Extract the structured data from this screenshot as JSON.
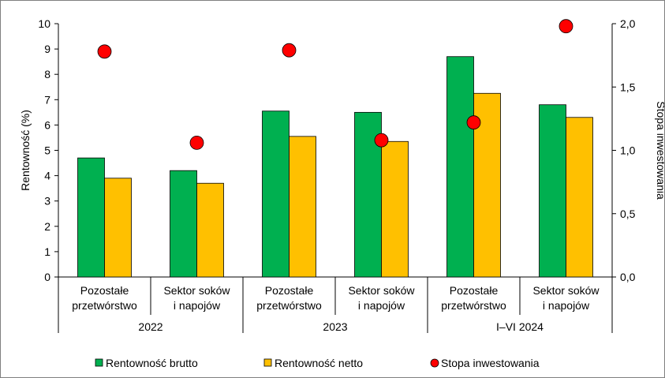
{
  "chart_data": {
    "type": "bar",
    "title": "",
    "ylabel": "Rentowność (%)",
    "y2label": "Stopa inwestowania",
    "ylim": [
      0,
      10
    ],
    "y2lim": [
      0,
      2
    ],
    "yticks": [
      "0",
      "1",
      "2",
      "3",
      "4",
      "5",
      "6",
      "7",
      "8",
      "9",
      "10"
    ],
    "y2ticks": [
      "0,0",
      "0,5",
      "1,0",
      "1,5",
      "2,0"
    ],
    "groups": [
      "2022",
      "2023",
      "I–VI 2024"
    ],
    "categories": [
      {
        "group": "2022",
        "line1": "Pozostałe",
        "line2": "przetwórstwo"
      },
      {
        "group": "2022",
        "line1": "Sektor soków",
        "line2": "i napojów"
      },
      {
        "group": "2023",
        "line1": "Pozostałe",
        "line2": "przetwórstwo"
      },
      {
        "group": "2023",
        "line1": "Sektor soków",
        "line2": "i napojów"
      },
      {
        "group": "I–VI 2024",
        "line1": "Pozostałe",
        "line2": "przetwórstwo"
      },
      {
        "group": "I–VI 2024",
        "line1": "Sektor soków",
        "line2": "i napojów"
      }
    ],
    "series": [
      {
        "name": "Rentowność brutto",
        "kind": "bar",
        "axis": "left",
        "color": "#00b050",
        "values": [
          4.7,
          4.2,
          6.55,
          6.5,
          8.7,
          6.8
        ]
      },
      {
        "name": "Rentowność netto",
        "kind": "bar",
        "axis": "left",
        "color": "#ffc000",
        "values": [
          3.9,
          3.7,
          5.55,
          5.35,
          7.25,
          6.3
        ]
      },
      {
        "name": "Stopa inwestowania",
        "kind": "scatter",
        "axis": "right",
        "color": "#ff0000",
        "values": [
          1.78,
          1.06,
          1.79,
          1.08,
          1.22,
          1.98
        ]
      }
    ],
    "grid": false,
    "legend_position": "bottom"
  }
}
